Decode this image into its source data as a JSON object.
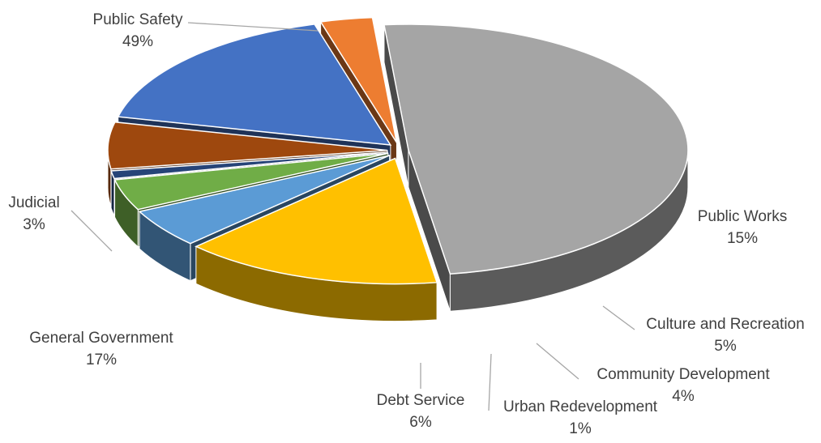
{
  "chart_data": {
    "type": "pie",
    "style": "3d-exploded",
    "title": "",
    "legend": "none",
    "slices": [
      {
        "label": "Public Safety",
        "value": 49,
        "value_label": "49%",
        "color": "#A5A5A5"
      },
      {
        "label": "Public Works",
        "value": 15,
        "value_label": "15%",
        "color": "#FFC000"
      },
      {
        "label": "Culture and Recreation",
        "value": 5,
        "value_label": "5%",
        "color": "#5B9BD5"
      },
      {
        "label": "Community Development",
        "value": 4,
        "value_label": "4%",
        "color": "#70AD47"
      },
      {
        "label": "Urban Redevelopment",
        "value": 1,
        "value_label": "1%",
        "color": "#264478"
      },
      {
        "label": "Debt Service",
        "value": 6,
        "value_label": "6%",
        "color": "#9E480E"
      },
      {
        "label": "General Government",
        "value": 17,
        "value_label": "17%",
        "color": "#4472C4"
      },
      {
        "label": "Judicial",
        "value": 3,
        "value_label": "3%",
        "color": "#ED7D31"
      }
    ]
  }
}
